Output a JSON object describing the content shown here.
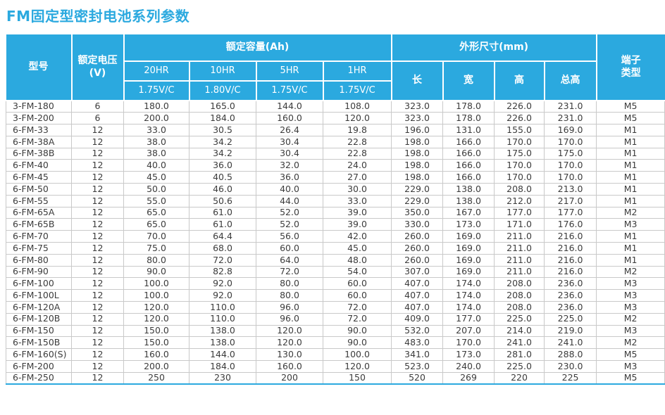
{
  "page": {
    "title": "FM固定型密封电池系列参数"
  },
  "colors": {
    "accent": "#2BA9DF",
    "header_text": "#ffffff",
    "body_text": "#3c3c3c",
    "grid_line": "#c9c9c9",
    "page_background": "#ffffff"
  },
  "table": {
    "header": {
      "model": "型号",
      "voltage": "额定电压\n(V)",
      "capacity_group": "额定容量(Ah)",
      "dimensions_group": "外形尺寸(mm)",
      "terminal": "端子\n类型",
      "capacity_cols": [
        {
          "rate": "20HR",
          "cutoff": "1.75V/C"
        },
        {
          "rate": "10HR",
          "cutoff": "1.80V/C"
        },
        {
          "rate": "5HR",
          "cutoff": "1.75V/C"
        },
        {
          "rate": "1HR",
          "cutoff": "1.75V/C"
        }
      ],
      "dimension_cols": [
        "长",
        "宽",
        "高",
        "总高"
      ]
    },
    "col_names": [
      "model-cell",
      "voltage-cell",
      "capacity-20hr-cell",
      "capacity-10hr-cell",
      "capacity-5hr-cell",
      "capacity-1hr-cell",
      "length-cell",
      "width-cell",
      "height-cell",
      "total-height-cell",
      "terminal-type-cell"
    ],
    "rows": [
      [
        "3-FM-180",
        "6",
        "180.0",
        "165.0",
        "144.0",
        "108.0",
        "323.0",
        "178.0",
        "226.0",
        "231.0",
        "M5"
      ],
      [
        "3-FM-200",
        "6",
        "200.0",
        "184.0",
        "160.0",
        "120.0",
        "323.0",
        "178.0",
        "226.0",
        "231.0",
        "M5"
      ],
      [
        "6-FM-33",
        "12",
        "33.0",
        "30.5",
        "26.4",
        "19.8",
        "196.0",
        "131.0",
        "155.0",
        "169.0",
        "M1"
      ],
      [
        "6-FM-38A",
        "12",
        "38.0",
        "34.2",
        "30.4",
        "22.8",
        "198.0",
        "166.0",
        "170.0",
        "170.0",
        "M1"
      ],
      [
        "6-FM-38B",
        "12",
        "38.0",
        "34.2",
        "30.4",
        "22.8",
        "198.0",
        "166.0",
        "175.0",
        "175.0",
        "M1"
      ],
      [
        "6-FM-40",
        "12",
        "40.0",
        "36.0",
        "32.0",
        "24.0",
        "198.0",
        "166.0",
        "170.0",
        "170.0",
        "M1"
      ],
      [
        "6-FM-45",
        "12",
        "45.0",
        "40.5",
        "36.0",
        "27.0",
        "198.0",
        "166.0",
        "170.0",
        "170.0",
        "M1"
      ],
      [
        "6-FM-50",
        "12",
        "50.0",
        "46.0",
        "40.0",
        "30.0",
        "229.0",
        "138.0",
        "208.0",
        "213.0",
        "M1"
      ],
      [
        "6-FM-55",
        "12",
        "55.0",
        "50.6",
        "44.0",
        "33.0",
        "229.0",
        "138.0",
        "212.0",
        "217.0",
        "M1"
      ],
      [
        "6-FM-65A",
        "12",
        "65.0",
        "61.0",
        "52.0",
        "39.0",
        "350.0",
        "167.0",
        "177.0",
        "177.0",
        "M2"
      ],
      [
        "6-FM-65B",
        "12",
        "65.0",
        "61.0",
        "52.0",
        "39.0",
        "330.0",
        "173.0",
        "171.0",
        "176.0",
        "M3"
      ],
      [
        "6-FM-70",
        "12",
        "70.0",
        "64.4",
        "56.0",
        "42.0",
        "260.0",
        "169.0",
        "211.0",
        "216.0",
        "M1"
      ],
      [
        "6-FM-75",
        "12",
        "75.0",
        "68.0",
        "60.0",
        "45.0",
        "260.0",
        "169.0",
        "211.0",
        "216.0",
        "M1"
      ],
      [
        "6-FM-80",
        "12",
        "80.0",
        "72.0",
        "64.0",
        "48.0",
        "260.0",
        "169.0",
        "211.0",
        "216.0",
        "M1"
      ],
      [
        "6-FM-90",
        "12",
        "90.0",
        "82.8",
        "72.0",
        "54.0",
        "307.0",
        "169.0",
        "211.0",
        "216.0",
        "M2"
      ],
      [
        "6-FM-100",
        "12",
        "100.0",
        "92.0",
        "80.0",
        "60.0",
        "407.0",
        "174.0",
        "208.0",
        "236.0",
        "M3"
      ],
      [
        "6-FM-100L",
        "12",
        "100.0",
        "92.0",
        "80.0",
        "60.0",
        "407.0",
        "174.0",
        "208.0",
        "236.0",
        "M3"
      ],
      [
        "6-FM-120A",
        "12",
        "120.0",
        "110.0",
        "96.0",
        "72.0",
        "407.0",
        "174.0",
        "208.0",
        "236.0",
        "M3"
      ],
      [
        "6-FM-120B",
        "12",
        "120.0",
        "110.0",
        "96.0",
        "72.0",
        "409.0",
        "177.0",
        "225.0",
        "225.0",
        "M2"
      ],
      [
        "6-FM-150",
        "12",
        "150.0",
        "138.0",
        "120.0",
        "90.0",
        "532.0",
        "207.0",
        "214.0",
        "219.0",
        "M3"
      ],
      [
        "6-FM-150B",
        "12",
        "150.0",
        "138.0",
        "120.0",
        "90.0",
        "483.0",
        "170.0",
        "241.0",
        "241.0",
        "M2"
      ],
      [
        "6-FM-160(S)",
        "12",
        "160.0",
        "144.0",
        "130.0",
        "100.0",
        "341.0",
        "173.0",
        "281.0",
        "288.0",
        "M5"
      ],
      [
        "6-FM-200",
        "12",
        "200.0",
        "184.0",
        "160.0",
        "120.0",
        "523.0",
        "240.0",
        "225.0",
        "230.0",
        "M3"
      ],
      [
        "6-FM-250",
        "12",
        "250",
        "230",
        "200",
        "150",
        "520",
        "269",
        "220",
        "225",
        "M5"
      ]
    ]
  }
}
